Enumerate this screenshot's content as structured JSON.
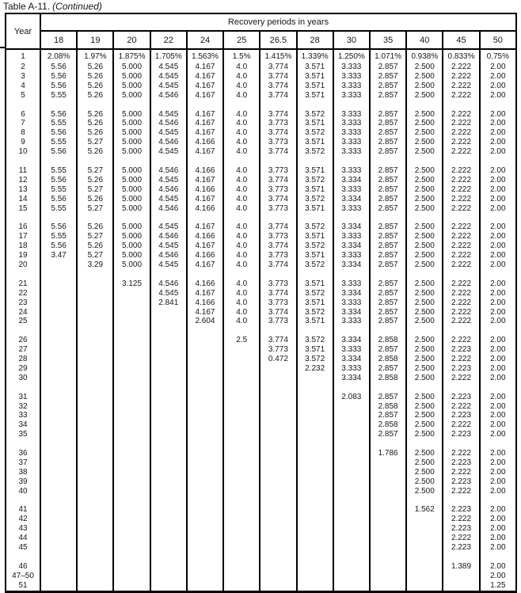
{
  "title": {
    "text": "Table A-11.",
    "continued": "(Continued)"
  },
  "table": {
    "corner_header": "Year",
    "span_header": "Recovery periods in years",
    "columns": [
      "18",
      "19",
      "20",
      "22",
      "24",
      "25",
      "26.5",
      "28",
      "30",
      "35",
      "40",
      "45",
      "50"
    ],
    "groups": [
      {
        "rows": [
          {
            "year": "1",
            "values": [
              "2.08%",
              "1.97%",
              "1.875%",
              "1.705%",
              "1.563%",
              "1.5%",
              "1.415%",
              "1.339%",
              "1.250%",
              "1.071%",
              "0.938%",
              "0.833%",
              "0.75%"
            ]
          },
          {
            "year": "2",
            "values": [
              "5.56",
              "5.26",
              "5.000",
              "4.545",
              "4.167",
              "4.0",
              "3.774",
              "3.571",
              "3.333",
              "2.857",
              "2.500",
              "2.222",
              "2.00"
            ]
          },
          {
            "year": "3",
            "values": [
              "5.56",
              "5.26",
              "5.000",
              "4.545",
              "4.167",
              "4.0",
              "3.774",
              "3.571",
              "3.333",
              "2.857",
              "2.500",
              "2.222",
              "2.00"
            ]
          },
          {
            "year": "4",
            "values": [
              "5.56",
              "5.26",
              "5.000",
              "4.545",
              "4.167",
              "4.0",
              "3.774",
              "3.571",
              "3.333",
              "2.857",
              "2.500",
              "2.222",
              "2.00"
            ]
          },
          {
            "year": "5",
            "values": [
              "5.55",
              "5.26",
              "5.000",
              "4.546",
              "4.167",
              "4.0",
              "3.774",
              "3.571",
              "3.333",
              "2.857",
              "2.500",
              "2.222",
              "2.00"
            ]
          }
        ]
      },
      {
        "rows": [
          {
            "year": "6",
            "values": [
              "5.56",
              "5.26",
              "5.000",
              "4.545",
              "4.167",
              "4.0",
              "3.774",
              "3.572",
              "3.333",
              "2.857",
              "2.500",
              "2.222",
              "2.00"
            ]
          },
          {
            "year": "7",
            "values": [
              "5.55",
              "5.26",
              "5.000",
              "4.546",
              "4.167",
              "4.0",
              "3.773",
              "3.571",
              "3.333",
              "2.857",
              "2.500",
              "2.222",
              "2.00"
            ]
          },
          {
            "year": "8",
            "values": [
              "5.56",
              "5.26",
              "5.000",
              "4.545",
              "4.167",
              "4.0",
              "3.774",
              "3.572",
              "3.333",
              "2.857",
              "2.500",
              "2.222",
              "2.00"
            ]
          },
          {
            "year": "9",
            "values": [
              "5.55",
              "5.27",
              "5.000",
              "4.546",
              "4.166",
              "4.0",
              "3.773",
              "3.571",
              "3.333",
              "2.857",
              "2.500",
              "2.222",
              "2.00"
            ]
          },
          {
            "year": "10",
            "values": [
              "5.56",
              "5.26",
              "5.000",
              "4.545",
              "4.167",
              "4.0",
              "3.774",
              "3.572",
              "3.333",
              "2.857",
              "2.500",
              "2.222",
              "2.00"
            ]
          }
        ]
      },
      {
        "rows": [
          {
            "year": "11",
            "values": [
              "5.55",
              "5.27",
              "5.000",
              "4.546",
              "4.166",
              "4.0",
              "3.773",
              "3.571",
              "3.333",
              "2.857",
              "2.500",
              "2.222",
              "2.00"
            ]
          },
          {
            "year": "12",
            "values": [
              "5.56",
              "5.26",
              "5.000",
              "4.545",
              "4.167",
              "4.0",
              "3.774",
              "3.572",
              "3.334",
              "2.857",
              "2.500",
              "2.222",
              "2.00"
            ]
          },
          {
            "year": "13",
            "values": [
              "5.55",
              "5.27",
              "5.000",
              "4.546",
              "4.166",
              "4.0",
              "3.773",
              "3.571",
              "3.333",
              "2.857",
              "2.500",
              "2.222",
              "2.00"
            ]
          },
          {
            "year": "14",
            "values": [
              "5.56",
              "5.26",
              "5.000",
              "4.545",
              "4.167",
              "4.0",
              "3.774",
              "3.572",
              "3.334",
              "2.857",
              "2.500",
              "2.222",
              "2.00"
            ]
          },
          {
            "year": "15",
            "values": [
              "5.55",
              "5.27",
              "5.000",
              "4.546",
              "4.166",
              "4.0",
              "3.773",
              "3.571",
              "3.333",
              "2.857",
              "2.500",
              "2.222",
              "2.00"
            ]
          }
        ]
      },
      {
        "rows": [
          {
            "year": "16",
            "values": [
              "5.56",
              "5.26",
              "5.000",
              "4.545",
              "4.167",
              "4.0",
              "3.774",
              "3.572",
              "3.334",
              "2.857",
              "2.500",
              "2.222",
              "2.00"
            ]
          },
          {
            "year": "17",
            "values": [
              "5.55",
              "5.27",
              "5.000",
              "4.546",
              "4.166",
              "4.0",
              "3.773",
              "3.571",
              "3.333",
              "2.857",
              "2.500",
              "2.222",
              "2.00"
            ]
          },
          {
            "year": "18",
            "values": [
              "5.56",
              "5.26",
              "5.000",
              "4.545",
              "4.167",
              "4.0",
              "3.774",
              "3.572",
              "3.334",
              "2.857",
              "2.500",
              "2.222",
              "2.00"
            ]
          },
          {
            "year": "19",
            "values": [
              "3.47",
              "5.27",
              "5.000",
              "4.546",
              "4.166",
              "4.0",
              "3.773",
              "3.571",
              "3.333",
              "2.857",
              "2.500",
              "2.222",
              "2.00"
            ]
          },
          {
            "year": "20",
            "values": [
              "",
              "3.29",
              "5.000",
              "4.545",
              "4.167",
              "4.0",
              "3.774",
              "3.572",
              "3.334",
              "2.857",
              "2.500",
              "2.222",
              "2.00"
            ]
          }
        ]
      },
      {
        "rows": [
          {
            "year": "21",
            "values": [
              "",
              "",
              "3.125",
              "4.546",
              "4.166",
              "4.0",
              "3.773",
              "3.571",
              "3.333",
              "2.857",
              "2.500",
              "2.222",
              "2.00"
            ]
          },
          {
            "year": "22",
            "values": [
              "",
              "",
              "",
              "4.545",
              "4.167",
              "4.0",
              "3.774",
              "3.572",
              "3.334",
              "2.857",
              "2.500",
              "2.222",
              "2.00"
            ]
          },
          {
            "year": "23",
            "values": [
              "",
              "",
              "",
              "2.841",
              "4.166",
              "4.0",
              "3.773",
              "3.571",
              "3.333",
              "2.857",
              "2.500",
              "2.222",
              "2.00"
            ]
          },
          {
            "year": "24",
            "values": [
              "",
              "",
              "",
              "",
              "4.167",
              "4.0",
              "3.774",
              "3.572",
              "3.334",
              "2.857",
              "2.500",
              "2.222",
              "2.00"
            ]
          },
          {
            "year": "25",
            "values": [
              "",
              "",
              "",
              "",
              "2.604",
              "4.0",
              "3.773",
              "3.571",
              "3.333",
              "2.857",
              "2.500",
              "2.222",
              "2.00"
            ]
          }
        ]
      },
      {
        "rows": [
          {
            "year": "26",
            "values": [
              "",
              "",
              "",
              "",
              "",
              "2.5",
              "3.774",
              "3.572",
              "3.334",
              "2.858",
              "2.500",
              "2.222",
              "2.00"
            ]
          },
          {
            "year": "27",
            "values": [
              "",
              "",
              "",
              "",
              "",
              "",
              "3.773",
              "3.571",
              "3.333",
              "2.857",
              "2.500",
              "2.223",
              "2.00"
            ]
          },
          {
            "year": "28",
            "values": [
              "",
              "",
              "",
              "",
              "",
              "",
              "0.472",
              "3.572",
              "3.334",
              "2.858",
              "2.500",
              "2.222",
              "2.00"
            ]
          },
          {
            "year": "29",
            "values": [
              "",
              "",
              "",
              "",
              "",
              "",
              "",
              "2.232",
              "3.333",
              "2.857",
              "2.500",
              "2.223",
              "2.00"
            ]
          },
          {
            "year": "30",
            "values": [
              "",
              "",
              "",
              "",
              "",
              "",
              "",
              "",
              "3.334",
              "2.858",
              "2.500",
              "2.222",
              "2.00"
            ]
          }
        ]
      },
      {
        "rows": [
          {
            "year": "31",
            "values": [
              "",
              "",
              "",
              "",
              "",
              "",
              "",
              "",
              "2.083",
              "2.857",
              "2.500",
              "2.223",
              "2.00"
            ]
          },
          {
            "year": "32",
            "values": [
              "",
              "",
              "",
              "",
              "",
              "",
              "",
              "",
              "",
              "2.858",
              "2.500",
              "2.222",
              "2.00"
            ]
          },
          {
            "year": "33",
            "values": [
              "",
              "",
              "",
              "",
              "",
              "",
              "",
              "",
              "",
              "2.857",
              "2.500",
              "2.223",
              "2.00"
            ]
          },
          {
            "year": "34",
            "values": [
              "",
              "",
              "",
              "",
              "",
              "",
              "",
              "",
              "",
              "2.858",
              "2.500",
              "2.222",
              "2.00"
            ]
          },
          {
            "year": "35",
            "values": [
              "",
              "",
              "",
              "",
              "",
              "",
              "",
              "",
              "",
              "2.857",
              "2.500",
              "2.223",
              "2.00"
            ]
          }
        ]
      },
      {
        "rows": [
          {
            "year": "36",
            "values": [
              "",
              "",
              "",
              "",
              "",
              "",
              "",
              "",
              "",
              "1.786",
              "2.500",
              "2.222",
              "2.00"
            ]
          },
          {
            "year": "37",
            "values": [
              "",
              "",
              "",
              "",
              "",
              "",
              "",
              "",
              "",
              "",
              "2.500",
              "2.223",
              "2.00"
            ]
          },
          {
            "year": "38",
            "values": [
              "",
              "",
              "",
              "",
              "",
              "",
              "",
              "",
              "",
              "",
              "2.500",
              "2.222",
              "2.00"
            ]
          },
          {
            "year": "39",
            "values": [
              "",
              "",
              "",
              "",
              "",
              "",
              "",
              "",
              "",
              "",
              "2.500",
              "2.223",
              "2.00"
            ]
          },
          {
            "year": "40",
            "values": [
              "",
              "",
              "",
              "",
              "",
              "",
              "",
              "",
              "",
              "",
              "2.500",
              "2.222",
              "2.00"
            ]
          }
        ]
      },
      {
        "rows": [
          {
            "year": "41",
            "values": [
              "",
              "",
              "",
              "",
              "",
              "",
              "",
              "",
              "",
              "",
              "1.562",
              "2.223",
              "2.00"
            ]
          },
          {
            "year": "42",
            "values": [
              "",
              "",
              "",
              "",
              "",
              "",
              "",
              "",
              "",
              "",
              "",
              "2.222",
              "2.00"
            ]
          },
          {
            "year": "43",
            "values": [
              "",
              "",
              "",
              "",
              "",
              "",
              "",
              "",
              "",
              "",
              "",
              "2.223",
              "2.00"
            ]
          },
          {
            "year": "44",
            "values": [
              "",
              "",
              "",
              "",
              "",
              "",
              "",
              "",
              "",
              "",
              "",
              "2.222",
              "2.00"
            ]
          },
          {
            "year": "45",
            "values": [
              "",
              "",
              "",
              "",
              "",
              "",
              "",
              "",
              "",
              "",
              "",
              "2.223",
              "2.00"
            ]
          }
        ]
      },
      {
        "rows": [
          {
            "year": "46",
            "values": [
              "",
              "",
              "",
              "",
              "",
              "",
              "",
              "",
              "",
              "",
              "",
              "1.389",
              "2.00"
            ]
          },
          {
            "year": "47–50",
            "values": [
              "",
              "",
              "",
              "",
              "",
              "",
              "",
              "",
              "",
              "",
              "",
              "",
              "2.00"
            ]
          },
          {
            "year": "51",
            "values": [
              "",
              "",
              "",
              "",
              "",
              "",
              "",
              "",
              "",
              "",
              "",
              "",
              "1.25"
            ]
          }
        ]
      }
    ]
  }
}
